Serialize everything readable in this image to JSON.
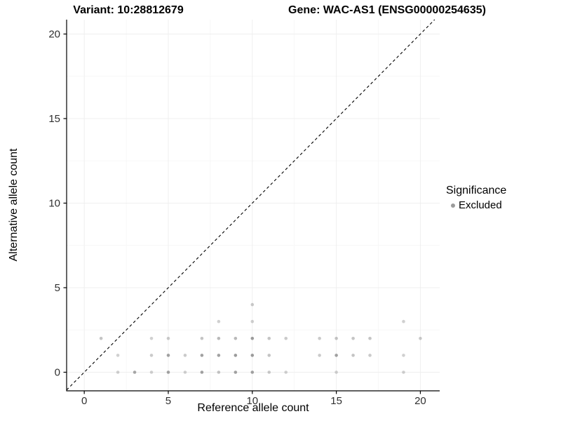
{
  "header": {
    "variant_title": "Variant: 10:28812679",
    "gene_title": "Gene: WAC-AS1 (ENSG00000254635)"
  },
  "legend": {
    "title": "Significance",
    "items": [
      {
        "label": "Excluded",
        "color": "#9b9b9b"
      }
    ]
  },
  "colors": {
    "point": "#8a8a8a",
    "major_grid": "#efefef",
    "minor_grid": "#f7f7f7",
    "axis_line": "#000000",
    "tick_label": "#303030",
    "diagonal": "#000000"
  },
  "chart_data": {
    "type": "scatter",
    "title": "Variant: 10:28812679",
    "subtitle": "Gene: WAC-AS1 (ENSG00000254635)",
    "xlabel": "Reference allele count",
    "ylabel": "Alternative allele count",
    "xlim": [
      -1.05,
      21.15
    ],
    "ylim": [
      -1.1,
      20.85
    ],
    "x_ticks": [
      0,
      5,
      10,
      15,
      20
    ],
    "y_ticks": [
      0,
      5,
      10,
      15,
      20
    ],
    "x_minor_ticks": [
      2.5,
      7.5,
      12.5,
      17.5
    ],
    "y_minor_ticks": [
      2.5,
      7.5,
      12.5,
      17.5
    ],
    "grid": true,
    "legend_position": "right",
    "reference_line": {
      "type": "abline",
      "slope": 1,
      "intercept": 0,
      "style": "dashed"
    },
    "point_radius": 2.3,
    "series": [
      {
        "name": "Excluded",
        "points": [
          [
            2,
            0,
            0.4
          ],
          [
            3,
            0,
            0.75
          ],
          [
            4,
            0,
            0.4
          ],
          [
            5,
            0,
            0.8
          ],
          [
            6,
            0,
            0.4
          ],
          [
            7,
            0,
            0.8
          ],
          [
            8,
            0,
            0.5
          ],
          [
            9,
            0,
            0.8
          ],
          [
            10,
            0,
            0.8
          ],
          [
            11,
            0,
            0.45
          ],
          [
            12,
            0,
            0.4
          ],
          [
            15,
            0,
            0.4
          ],
          [
            19,
            0,
            0.4
          ],
          [
            2,
            1,
            0.4
          ],
          [
            4,
            1,
            0.45
          ],
          [
            5,
            1,
            0.8
          ],
          [
            6,
            1,
            0.45
          ],
          [
            7,
            1,
            0.8
          ],
          [
            8,
            1,
            0.8
          ],
          [
            9,
            1,
            0.85
          ],
          [
            10,
            1,
            0.85
          ],
          [
            11,
            1,
            0.5
          ],
          [
            14,
            1,
            0.45
          ],
          [
            15,
            1,
            0.8
          ],
          [
            16,
            1,
            0.5
          ],
          [
            17,
            1,
            0.45
          ],
          [
            19,
            1,
            0.4
          ],
          [
            1,
            2,
            0.5
          ],
          [
            4,
            2,
            0.4
          ],
          [
            5,
            2,
            0.45
          ],
          [
            7,
            2,
            0.5
          ],
          [
            8,
            2,
            0.6
          ],
          [
            9,
            2,
            0.6
          ],
          [
            10,
            2,
            0.85
          ],
          [
            11,
            2,
            0.5
          ],
          [
            12,
            2,
            0.45
          ],
          [
            14,
            2,
            0.45
          ],
          [
            15,
            2,
            0.5
          ],
          [
            16,
            2,
            0.5
          ],
          [
            17,
            2,
            0.5
          ],
          [
            20,
            2,
            0.45
          ],
          [
            8,
            3,
            0.4
          ],
          [
            10,
            3,
            0.4
          ],
          [
            19,
            3,
            0.4
          ],
          [
            10,
            4,
            0.45
          ]
        ]
      }
    ]
  }
}
